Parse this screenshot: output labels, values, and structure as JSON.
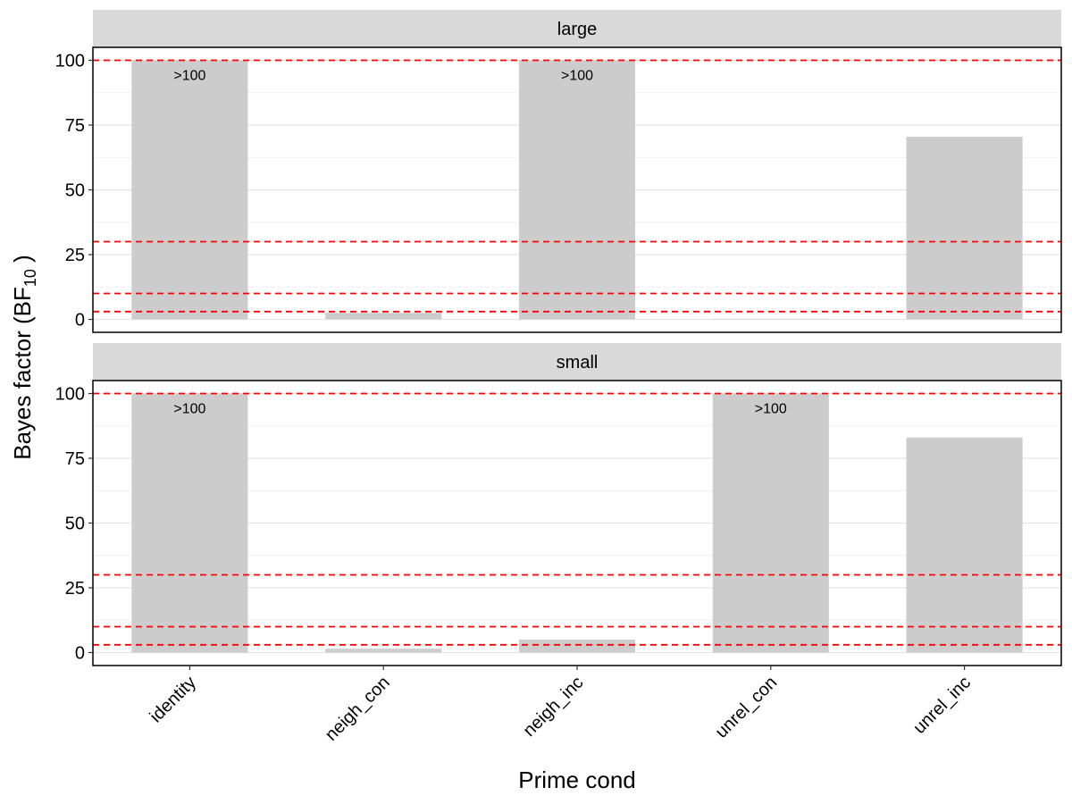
{
  "chart_data": {
    "type": "bar",
    "xlabel": "Prime cond",
    "ylabel": "Bayes factor (BF",
    "ylabel_sub": "10",
    "ylabel_close": " )",
    "categories": [
      "identity",
      "neigh_con",
      "neigh_inc",
      "unrel_con",
      "unrel_inc"
    ],
    "ylim": [
      -5,
      105
    ],
    "yticks": [
      0,
      25,
      50,
      75,
      100
    ],
    "reference_lines": [
      3,
      10,
      30,
      100
    ],
    "reference_line_color": "#ff0000",
    "bar_color": "#cccccc",
    "grid": true,
    "facets": [
      {
        "name": "large",
        "values": [
          100,
          2.5,
          100,
          0.2,
          70.5
        ],
        "labels": [
          ">100",
          "",
          ">100",
          "",
          ""
        ]
      },
      {
        "name": "small",
        "values": [
          100,
          1.5,
          5,
          100,
          83
        ],
        "labels": [
          ">100",
          "",
          "",
          ">100",
          ""
        ]
      }
    ]
  }
}
